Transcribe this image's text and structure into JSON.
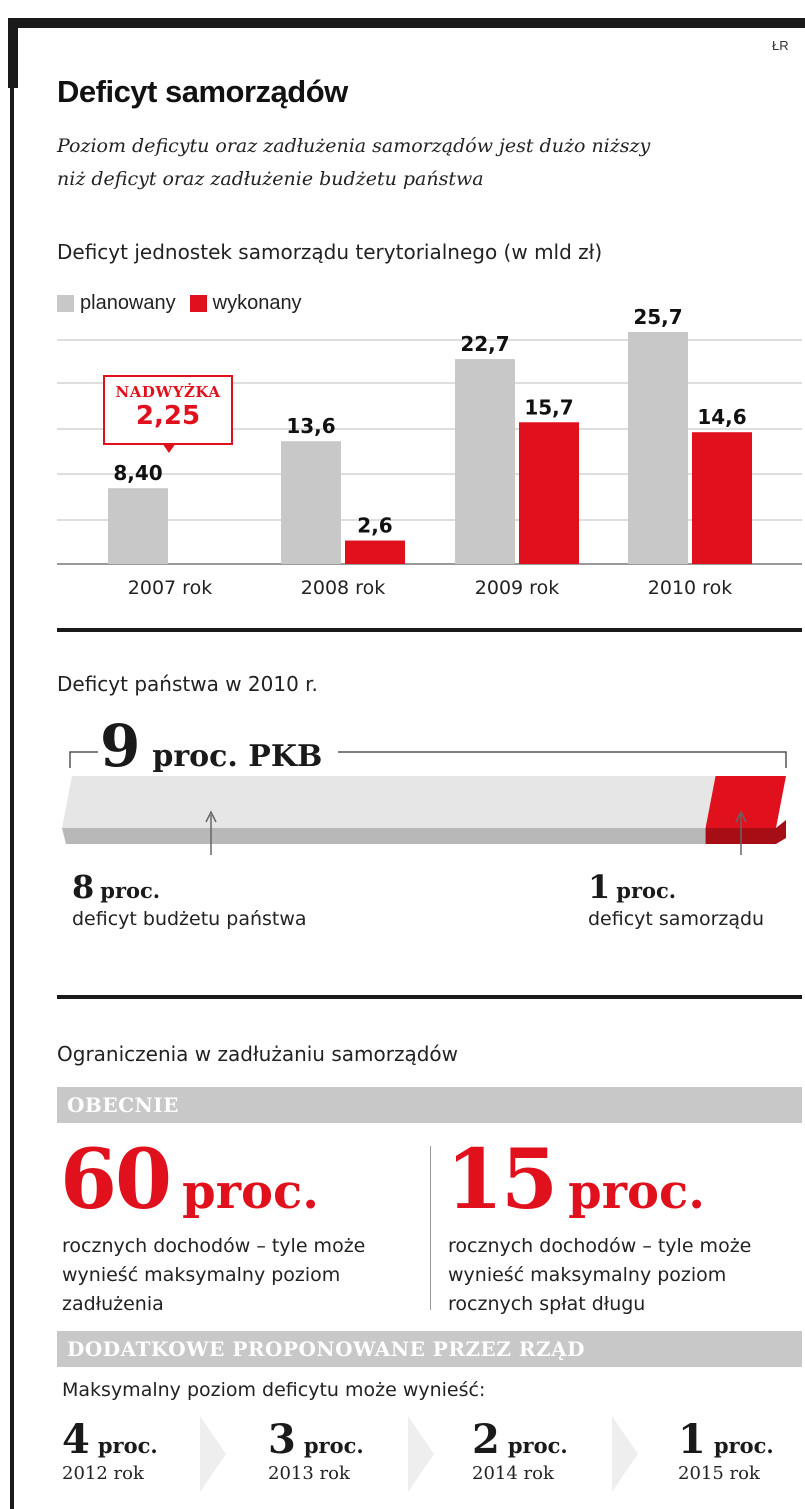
{
  "credit": "ŁR",
  "title": "Deficyt samorządów",
  "subtitle_line1": "Poziom deficytu oraz zadłużenia samorządów jest dużo niższy",
  "subtitle_line2": "niż deficyt oraz zadłużenie budżetu państwa",
  "colors": {
    "planowany": "#c8c8c8",
    "wykonany": "#e0111c",
    "accent": "#e0111c"
  },
  "chart_data": {
    "type": "bar",
    "title": "Deficyt jednostek samorządu terytorialnego (w mld zł)",
    "categories": [
      "2007 rok",
      "2008 rok",
      "2009 rok",
      "2010 rok"
    ],
    "series": [
      {
        "name": "planowany",
        "values": [
          8.4,
          13.6,
          22.7,
          25.7
        ],
        "labels": [
          "8,40",
          "13,6",
          "22,7",
          "25,7"
        ]
      },
      {
        "name": "wykonany",
        "values": [
          null,
          2.6,
          15.7,
          14.6
        ],
        "labels": [
          "",
          "2,6",
          "15,7",
          "14,6"
        ]
      }
    ],
    "annotation": {
      "category": "2007 rok",
      "label": "NADWYŻKA",
      "value": "2,25"
    },
    "legend_position": "top-left",
    "grid": true,
    "ylim": [
      0,
      25.7
    ]
  },
  "state_deficit": {
    "heading": "Deficyt państwa w 2010 r.",
    "total_value": "9",
    "total_unit": "proc. PKB",
    "budget_share": 8,
    "local_share": 1,
    "budget_value": "8",
    "budget_unit": "proc.",
    "budget_desc": "deficyt budżetu państwa",
    "local_value": "1",
    "local_unit": "proc.",
    "local_desc": "deficyt samorządu"
  },
  "limits": {
    "heading": "Ograniczenia w zadłużaniu samorządów",
    "band_current": "OBECNIE",
    "left_value": "60",
    "left_unit": "proc.",
    "left_desc1": "rocznych dochodów – tyle może",
    "left_desc2": "wynieść maksymalny poziom",
    "left_desc3": "zadłużenia",
    "right_value": "15",
    "right_unit": "proc.",
    "right_desc1": "rocznych dochodów – tyle może",
    "right_desc2": "wynieść maksymalny poziom",
    "right_desc3": "rocznych spłat długu",
    "band_proposed": "DODATKOWE PROPONOWANE PRZEZ RZĄD",
    "proposed_intro": "Maksymalny poziom deficytu może wynieść:",
    "steps": [
      {
        "value": "4",
        "unit": "proc.",
        "year": "2012 rok"
      },
      {
        "value": "3",
        "unit": "proc.",
        "year": "2013 rok"
      },
      {
        "value": "2",
        "unit": "proc.",
        "year": "2014 rok"
      },
      {
        "value": "1",
        "unit": "proc.",
        "year": "2015 rok"
      }
    ]
  }
}
